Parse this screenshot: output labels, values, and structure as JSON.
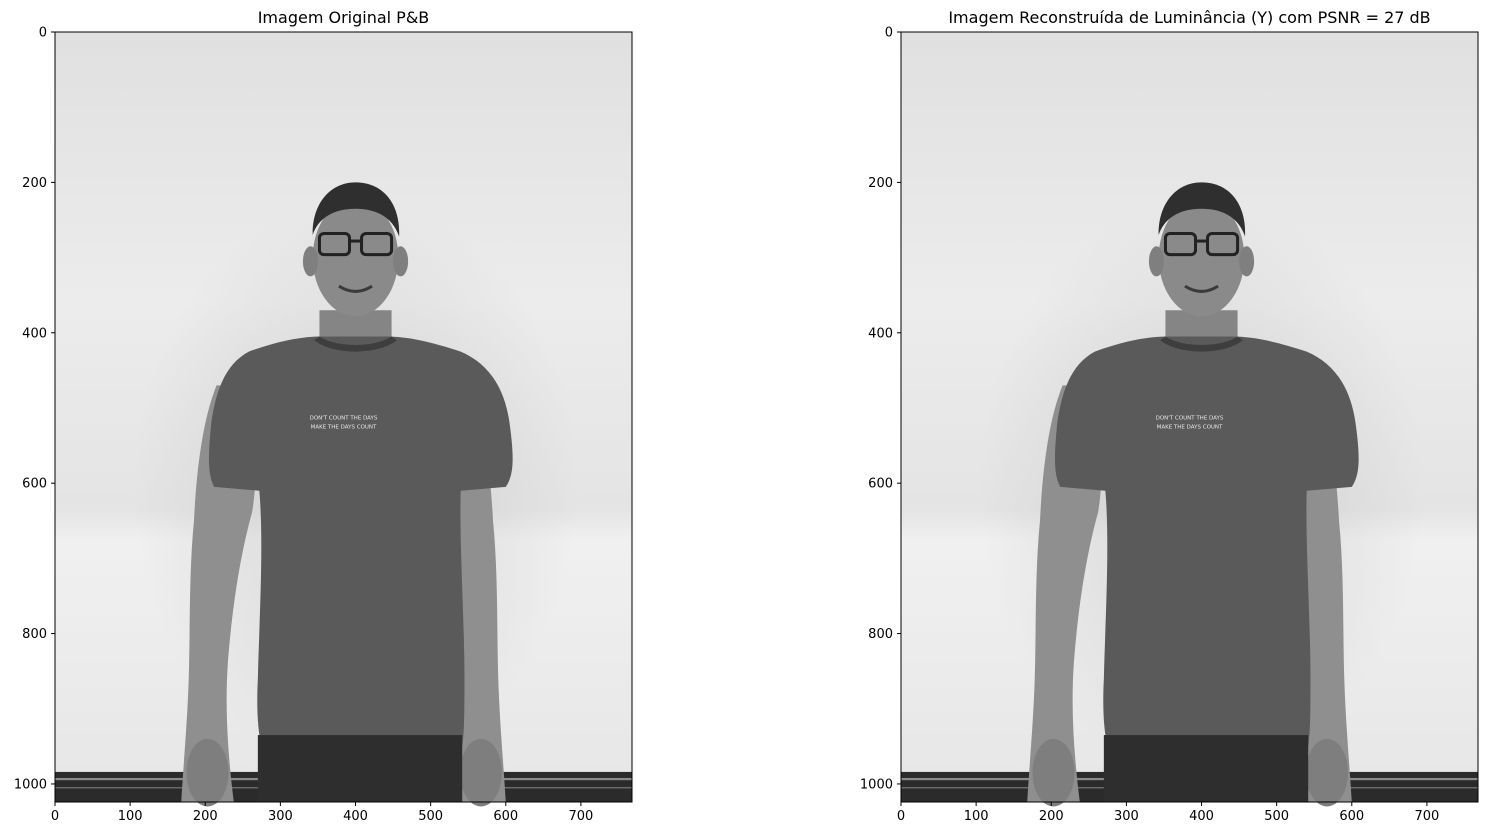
{
  "chart_data": [
    {
      "type": "image",
      "title": "Imagem Original P&B",
      "xlabel": "",
      "ylabel": "",
      "xlim": [
        0,
        768
      ],
      "ylim": [
        1024,
        0
      ],
      "xticks": [
        0,
        100,
        200,
        300,
        400,
        500,
        600,
        700
      ],
      "yticks": [
        0,
        200,
        400,
        600,
        800,
        1000
      ],
      "grid": false,
      "colormap": "gray"
    },
    {
      "type": "image",
      "title": "Imagem Reconstruída de Luminância (Y) com PSNR = 27 dB",
      "xlabel": "",
      "ylabel": "",
      "xlim": [
        0,
        768
      ],
      "ylim": [
        1024,
        0
      ],
      "xticks": [
        0,
        100,
        200,
        300,
        400,
        500,
        600,
        700
      ],
      "yticks": [
        0,
        200,
        400,
        600,
        800,
        1000
      ],
      "grid": false,
      "colormap": "gray"
    }
  ],
  "panels": [
    {
      "shirt_text_line1": "DON'T COUNT THE DAYS",
      "shirt_text_line2": "MAKE THE DAYS COUNT"
    },
    {
      "shirt_text_line1": "DON'T COUNT THE DAYS",
      "shirt_text_line2": "MAKE THE DAYS COUNT"
    }
  ]
}
